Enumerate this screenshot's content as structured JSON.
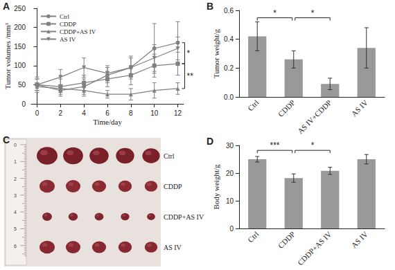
{
  "chart_data": [
    {
      "panel": "A",
      "type": "line",
      "x": [
        0,
        2,
        4,
        6,
        8,
        10,
        12
      ],
      "xlim": [
        -0.5,
        12.5
      ],
      "xticks": [
        0,
        2,
        4,
        6,
        8,
        10,
        12
      ],
      "ylim": [
        0,
        250
      ],
      "yticks": [
        0,
        50,
        100,
        150,
        200,
        250
      ],
      "x_label": "Time/day",
      "y_label": "Tumor volumes /mm³",
      "grid": false,
      "legend": "top-left",
      "series": [
        {
          "name": "Ctrl",
          "color": "#808080",
          "marker": "circle",
          "values": [
            50,
            35,
            45,
            75,
            95,
            145,
            160
          ],
          "errors": [
            15,
            15,
            20,
            20,
            30,
            65,
            55
          ]
        },
        {
          "name": "CDDP",
          "color": "#808080",
          "marker": "square",
          "values": [
            50,
            45,
            55,
            65,
            75,
            100,
            105
          ],
          "errors": [
            15,
            20,
            20,
            20,
            25,
            30,
            30
          ]
        },
        {
          "name": "CDDP+AS IV",
          "color": "#808080",
          "marker": "triangle-up",
          "values": [
            45,
            40,
            35,
            25,
            25,
            35,
            40
          ],
          "errors": [
            10,
            10,
            15,
            10,
            15,
            20,
            15
          ]
        },
        {
          "name": "AS IV",
          "color": "#808080",
          "marker": "triangle-down",
          "values": [
            50,
            70,
            95,
            80,
            95,
            120,
            145
          ],
          "errors": [
            20,
            20,
            25,
            20,
            25,
            35,
            30
          ]
        }
      ],
      "significance": [
        {
          "from": "Ctrl",
          "to": "CDDP",
          "label": "*"
        },
        {
          "from": "CDDP",
          "to": "CDDP+AS IV",
          "label": "**"
        }
      ]
    },
    {
      "panel": "B",
      "type": "bar",
      "categories": [
        "Ctrl",
        "CDDP",
        "AS IV+CDDP",
        "AS IV"
      ],
      "values": [
        0.42,
        0.26,
        0.09,
        0.34
      ],
      "errors": [
        0.1,
        0.06,
        0.04,
        0.14
      ],
      "color": "#999999",
      "ylim": [
        0,
        0.6
      ],
      "yticks": [
        {
          "value": 0,
          "label": "0.0"
        },
        0.2,
        0.4,
        0.6
      ],
      "y_label": "Tumor weight/g",
      "grid": false,
      "significance": [
        {
          "from": "Ctrl",
          "to": "CDDP",
          "label": "*"
        },
        {
          "from": "CDDP",
          "to": "AS IV+CDDP",
          "label": "*"
        }
      ]
    },
    {
      "panel": "D",
      "type": "bar",
      "categories": [
        "Ctrl",
        "CDDP",
        "CDDP+AS IV",
        "AS IV"
      ],
      "values": [
        25,
        18.2,
        20.8,
        25
      ],
      "errors": [
        1,
        1.5,
        1.3,
        1.7
      ],
      "color": "#999999",
      "ylim": [
        0,
        30
      ],
      "yticks": [
        0,
        10,
        20,
        30
      ],
      "y_label": "Body weight/g",
      "grid": false,
      "significance": [
        {
          "from": "Ctrl",
          "to": "CDDP",
          "label": "***"
        },
        {
          "from": "CDDP",
          "to": "CDDP+AS IV",
          "label": "*"
        }
      ]
    }
  ],
  "photo": {
    "panel": "C",
    "groups": [
      "Ctrl",
      "CDDP",
      "CDDP+AS IV",
      "AS IV"
    ],
    "specimens_per_group": 5,
    "ruler_labels": [
      0,
      1,
      2,
      3,
      4,
      5,
      6
    ]
  }
}
